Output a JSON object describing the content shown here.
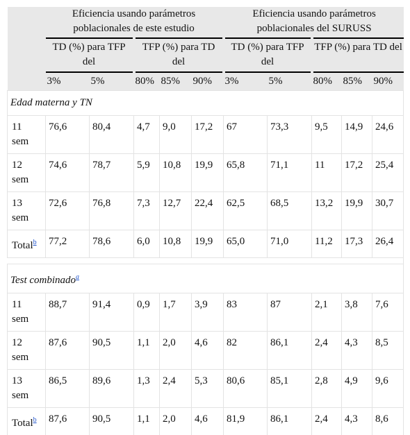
{
  "header": {
    "group1": "Eficiencia usando parámetros poblacionales de este estudio",
    "group2": "Eficiencia usando parámetros poblacionales del SURUSS",
    "sub_td": "TD (%) para TFP del",
    "sub_tfp": "TFP (%) para TD del",
    "tfp_levels": [
      "3%",
      "5%"
    ],
    "td_levels": [
      "80%",
      "85%",
      "90%"
    ]
  },
  "sections": [
    {
      "title": "Edad materna y TN",
      "title_sup": "",
      "rows": [
        {
          "label": "11",
          "label2": "sem",
          "sup": "",
          "values": [
            "76,6",
            "80,4",
            "4,7",
            "9,0",
            "17,2",
            "67",
            "73,3",
            "9,5",
            "14,9",
            "24,6"
          ]
        },
        {
          "label": "12",
          "label2": "sem",
          "sup": "",
          "values": [
            "74,6",
            "78,7",
            "5,9",
            "10,8",
            "19,9",
            "65,8",
            "71,1",
            "11",
            "17,2",
            "25,4"
          ]
        },
        {
          "label": "13",
          "label2": "sem",
          "sup": "",
          "values": [
            "72,6",
            "76,8",
            "7,3",
            "12,7",
            "22,4",
            "62,5",
            "68,5",
            "13,2",
            "19,9",
            "30,7"
          ]
        },
        {
          "label": "Total",
          "label2": "",
          "sup": "b",
          "values": [
            "77,2",
            "78,6",
            "6,0",
            "10,8",
            "19,9",
            "65,0",
            "71,0",
            "11,2",
            "17,3",
            "26,4"
          ]
        }
      ]
    },
    {
      "title": "Test combinado",
      "title_sup": "a",
      "rows": [
        {
          "label": "11",
          "label2": "sem",
          "sup": "",
          "values": [
            "88,7",
            "91,4",
            "0,9",
            "1,7",
            "3,9",
            "83",
            "87",
            "2,1",
            "3,8",
            "7,6"
          ]
        },
        {
          "label": "12",
          "label2": "sem",
          "sup": "",
          "values": [
            "87,6",
            "90,5",
            "1,1",
            "2,0",
            "4,6",
            "82",
            "86,1",
            "2,4",
            "4,3",
            "8,5"
          ]
        },
        {
          "label": "13",
          "label2": "sem",
          "sup": "",
          "values": [
            "86,5",
            "89,6",
            "1,3",
            "2,4",
            "5,3",
            "80,6",
            "85,1",
            "2,8",
            "4,9",
            "9,6"
          ]
        },
        {
          "label": "Total",
          "label2": "",
          "sup": "b",
          "values": [
            "87,6",
            "90,5",
            "1,1",
            "2,0",
            "4,6",
            "81,9",
            "86,1",
            "2,4",
            "4,3",
            "8,6"
          ]
        }
      ]
    }
  ]
}
